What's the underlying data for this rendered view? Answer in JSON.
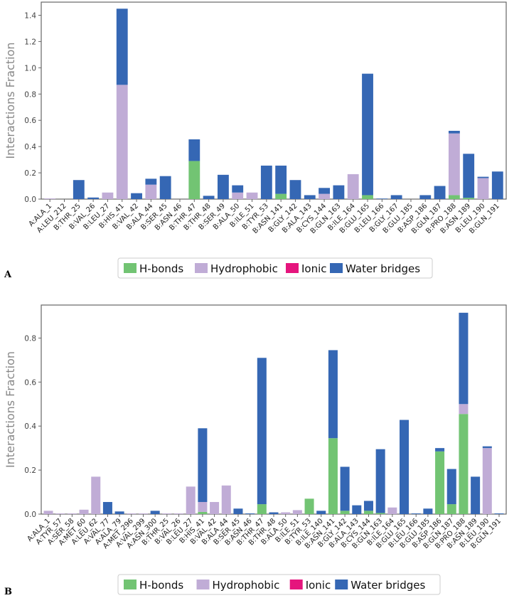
{
  "colors": {
    "hbonds": "#72c473",
    "hydrophobic": "#c0acd6",
    "ionic": "#e5157d",
    "water": "#3567b4",
    "axis": "#666666",
    "ylabel": "#888888"
  },
  "chart_data": [
    {
      "panel": "A",
      "type": "bar",
      "stacked": true,
      "ylabel": "Interactions Fraction",
      "ylim": [
        0,
        1.5
      ],
      "yticks": [
        "0.0",
        "0.2",
        "0.4",
        "0.6",
        "0.8",
        "1.0",
        "1.2",
        "1.4"
      ],
      "categories": [
        "A:ALA_1",
        "A:LEU_212",
        "B:THR_25",
        "B:VAL_26",
        "B:LEU_27",
        "B:HIS_41",
        "B:VAL_42",
        "B:ALA_44",
        "B:SER_45",
        "B:ASN_46",
        "B:THR_47",
        "B:THR_48",
        "B:SER_49",
        "B:ALA_50",
        "B:ILE_51",
        "B:TYR_53",
        "B:ASN_141",
        "B:GLY_142",
        "B:ALA_143",
        "B:CYS_144",
        "B:GLN_163",
        "B:ILE_164",
        "B:GLU_165",
        "B:LEU_166",
        "B:GLY_167",
        "B:GLU_185",
        "B:ASP_186",
        "B:GLN_187",
        "B:PRO_188",
        "B:ASN_189",
        "B:LEU_190",
        "B:GLN_191"
      ],
      "series": [
        {
          "name": "H-bonds",
          "values": [
            0,
            0,
            0,
            0,
            0,
            0,
            0,
            0,
            0,
            0,
            0.29,
            0,
            0,
            0,
            0,
            0,
            0.04,
            0,
            0,
            0,
            0,
            0,
            0.03,
            0,
            0,
            0,
            0,
            0,
            0.03,
            0.01,
            0,
            0
          ]
        },
        {
          "name": "Hydrophobic",
          "values": [
            0.005,
            0,
            0,
            0,
            0.05,
            0.87,
            0,
            0.11,
            0,
            0,
            0,
            0,
            0,
            0.05,
            0.05,
            0,
            0,
            0,
            0,
            0.04,
            0,
            0.19,
            0,
            0,
            0,
            0,
            0,
            0,
            0.47,
            0,
            0.16,
            0
          ]
        },
        {
          "name": "Ionic",
          "values": [
            0,
            0,
            0,
            0,
            0,
            0,
            0,
            0,
            0,
            0,
            0,
            0,
            0,
            0,
            0,
            0,
            0,
            0,
            0,
            0,
            0,
            0,
            0,
            0,
            0,
            0,
            0,
            0,
            0,
            0,
            0,
            0
          ]
        },
        {
          "name": "Water bridges",
          "values": [
            0,
            0,
            0.145,
            0.012,
            0,
            0.58,
            0.045,
            0.045,
            0.175,
            0,
            0.165,
            0.025,
            0.185,
            0.055,
            0,
            0.255,
            0.215,
            0.145,
            0.03,
            0.045,
            0.105,
            0,
            0.925,
            0.004,
            0.03,
            0,
            0.03,
            0.1,
            0.02,
            0.335,
            0.01,
            0.21
          ]
        }
      ],
      "legend": [
        "H-bonds",
        "Hydrophobic",
        "Ionic",
        "Water bridges"
      ]
    },
    {
      "panel": "B",
      "type": "bar",
      "stacked": true,
      "ylabel": "Interactions Fraction",
      "ylim": [
        0,
        0.95
      ],
      "yticks": [
        "0.0",
        "0.2",
        "0.4",
        "0.6",
        "0.8"
      ],
      "categories": [
        "A:ALA_1",
        "A:TYR_57",
        "A:SER_58",
        "A:MET_60",
        "A:LEU_62",
        "A:VAL_77",
        "A:ALA_79",
        "A:MET_296",
        "A:VAL_299",
        "A:ASN_300",
        "B:THR_25",
        "B:VAL_26",
        "B:LEU_27",
        "B:HIS_41",
        "B:VAL_42",
        "B:ALA_44",
        "B:SER_45",
        "B:ASN_46",
        "B:THR_47",
        "B:THR_48",
        "B:ALA_50",
        "B:ILE_51",
        "B:TYR_53",
        "B:ILE_140",
        "B:ASN_141",
        "B:GLY_142",
        "B:ALA_143",
        "B:CYS_144",
        "B:GLN_163",
        "B:ILE_164",
        "B:GLU_165",
        "B:LEU_166",
        "B:GLU_185",
        "B:ASP_186",
        "B:GLN_187",
        "B:PRO_188",
        "B:ASN_189",
        "B:LEU_190",
        "B:GLN_191"
      ],
      "series": [
        {
          "name": "H-bonds",
          "values": [
            0,
            0,
            0,
            0,
            0,
            0,
            0,
            0,
            0,
            0,
            0,
            0,
            0,
            0.01,
            0,
            0,
            0,
            0,
            0.045,
            0,
            0,
            0,
            0.07,
            0,
            0.345,
            0.015,
            0,
            0.015,
            0.005,
            0,
            0,
            0,
            0,
            0.285,
            0.045,
            0.455,
            0,
            0,
            0
          ]
        },
        {
          "name": "Hydrophobic",
          "values": [
            0.015,
            0.003,
            0.003,
            0.02,
            0.17,
            0,
            0,
            0.003,
            0.003,
            0,
            0.003,
            0.003,
            0.125,
            0.045,
            0.055,
            0.13,
            0,
            0,
            0,
            0,
            0.008,
            0.018,
            0,
            0,
            0,
            0,
            0,
            0,
            0,
            0.03,
            0,
            0,
            0,
            0,
            0,
            0.045,
            0,
            0.3,
            0
          ]
        },
        {
          "name": "Ionic",
          "values": [
            0,
            0,
            0,
            0,
            0,
            0,
            0,
            0,
            0,
            0,
            0,
            0,
            0,
            0,
            0,
            0,
            0,
            0,
            0,
            0,
            0,
            0,
            0,
            0,
            0,
            0,
            0,
            0,
            0,
            0,
            0,
            0,
            0,
            0,
            0,
            0,
            0,
            0,
            0
          ]
        },
        {
          "name": "Water bridges",
          "values": [
            0,
            0,
            0,
            0,
            0,
            0.055,
            0.012,
            0,
            0,
            0.015,
            0,
            0,
            0,
            0.335,
            0,
            0,
            0.025,
            0.003,
            0.665,
            0.008,
            0,
            0,
            0,
            0.015,
            0.4,
            0.2,
            0.04,
            0.045,
            0.29,
            0,
            0.428,
            0.003,
            0.025,
            0.015,
            0.16,
            0.415,
            0.17,
            0.008,
            0.003
          ]
        }
      ],
      "legend": [
        "H-bonds",
        "Hydrophobic",
        "Ionic",
        "Water bridges"
      ]
    }
  ]
}
